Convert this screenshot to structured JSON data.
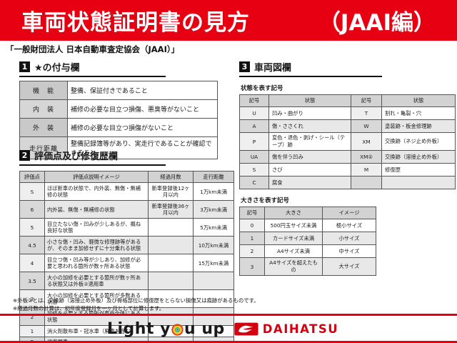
{
  "header": {
    "title": "車両状態証明書の見方",
    "edition": "（JAAI編）"
  },
  "subtitle": "「一般財団法人 日本自動車査定協会（JAAI）」",
  "colors": {
    "brand_red": "#e60012",
    "section_black": "#111111"
  },
  "section1": {
    "number": "1",
    "title": "★の付与欄",
    "rows": [
      {
        "label": "機　能",
        "desc": "整備、保証付きであること"
      },
      {
        "label": "内　装",
        "desc": "補修の必要な目立つ損傷、悪臭等がないこと"
      },
      {
        "label": "外　装",
        "desc": "補修の必要な目立つ損傷がないこと"
      },
      {
        "label": "走行距離",
        "desc": "整備記録簿等があり、実走行であることが確認できること"
      }
    ]
  },
  "section2": {
    "number": "2",
    "title": "評価点及び修復歴欄",
    "headers": [
      "評価点",
      "評価点説明イメージ",
      "経過月数",
      "走行距離"
    ],
    "rows": [
      {
        "score": "S",
        "desc": "ほぼ新車の状態で、内外装、無傷・無補修の状態",
        "months": "新車登録後12ヶ月以内",
        "mileage": "1万km未満"
      },
      {
        "score": "6",
        "desc": "内外装、無傷・無補修の状態",
        "months": "新車登録後36ヶ月以内",
        "mileage": "3万km未満"
      },
      {
        "score": "5",
        "desc": "目立たない傷・凹みが少しあるが、概ね良好な状態",
        "months": "",
        "mileage": "5万km未満"
      },
      {
        "score": "4.5",
        "desc": "小さな傷・凹み、軽微な修理跡等があるが、そのまま加修せずに十分乗れる状態",
        "months": "",
        "mileage": "10万km未満"
      },
      {
        "score": "4",
        "desc": "目立つ傷・凹み等が少しあり、加修が必要と思われる箇所が数ヶ所ある状態",
        "months": "",
        "mileage": "15万km未満"
      },
      {
        "score": "3.5",
        "desc": "大小の加修を必要とする箇所が数ヶ所ある状態又は外板②適用車",
        "months": "",
        "mileage": ""
      },
      {
        "score": "3",
        "desc": "大小の加修を必要とする箇所が多数ある状態",
        "months": "",
        "mileage": ""
      },
      {
        "score": "2",
        "desc": "加修を必要とする箇所が車両全体にある状態",
        "months": "",
        "mileage": ""
      },
      {
        "score": "1",
        "desc": "消火剤散布車・冠水車（廃車を含む）",
        "months": "",
        "mileage": ""
      },
      {
        "score": "R",
        "desc": "修復歴車",
        "months": "",
        "mileage": ""
      }
    ]
  },
  "section3": {
    "number": "3",
    "title": "車両図欄",
    "state_table": {
      "caption": "状態を表す記号",
      "headers": [
        "記号",
        "状態",
        "記号",
        "状態"
      ],
      "rows": [
        [
          "U",
          "凹み・曲がり",
          "T",
          "割れ・亀裂・穴"
        ],
        [
          "A",
          "傷・ささくれ",
          "W",
          "塗装跡・板金修理跡"
        ],
        [
          "P",
          "変色・退色・剥げ・シール（テープ）跡",
          "XM",
          "交換跡（ネジ止め外板）"
        ],
        [
          "UA",
          "傷を伴う凹み",
          "XM②",
          "交換跡（溶接止め外板）"
        ],
        [
          "S",
          "さび",
          "M",
          "修復歴"
        ],
        [
          "C",
          "腐食",
          "",
          ""
        ]
      ]
    },
    "size_table": {
      "caption": "大きさを表す記号",
      "headers": [
        "記号",
        "大きさ",
        "イメージ"
      ],
      "rows": [
        [
          "0",
          "500円玉サイズ未満",
          "極小サイズ"
        ],
        [
          "1",
          "カードサイズ未満",
          "小サイズ"
        ],
        [
          "2",
          "A4サイズ未満",
          "中サイズ"
        ],
        [
          "3",
          "A4サイズを超えたもの",
          "大サイズ"
        ]
      ]
    }
  },
  "notes": [
    "※外板②とは、交換跡（溶接止め外板）及び骨格部位に修復歴をとらない損傷又は痕跡があるものです。",
    "※経過月数の計算は、初年度登録月を一ヶ月として計算します。"
  ],
  "footer": {
    "slogan_before_o": "Light y",
    "slogan_after_o": "u up",
    "brand": "DAIHATSU"
  }
}
